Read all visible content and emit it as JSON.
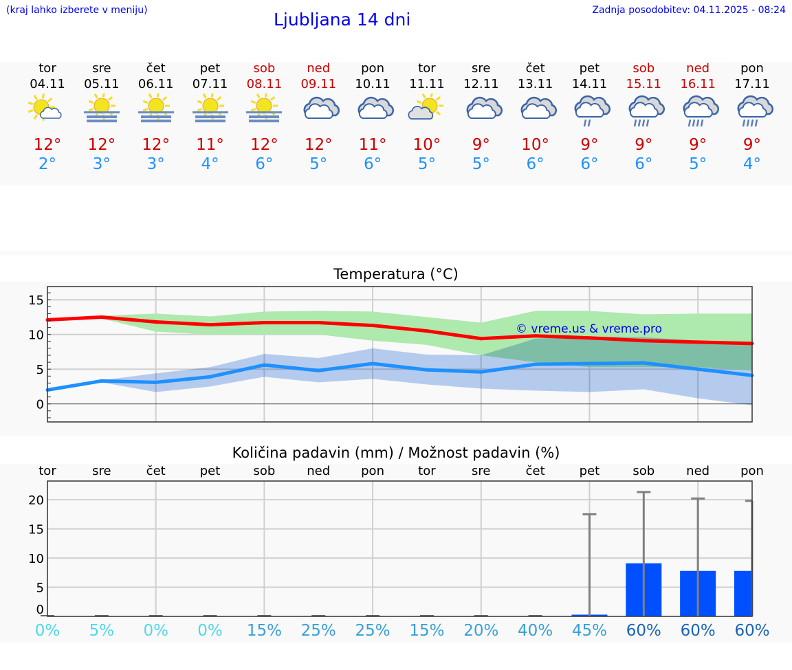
{
  "header": {
    "hint": "(kraj lahko izberete v meniju)",
    "title": "Ljubljana 14 dni",
    "updated": "Zadnja posodobitev: 04.11.2025 - 08:24"
  },
  "colors": {
    "max": "#ff0000",
    "min": "#1e90ff",
    "max_band": "#aee9ae",
    "min_band": "#aec8f2",
    "bar": "#0050ff",
    "whisker": "#808080",
    "weekend": "#cc0000"
  },
  "days": [
    {
      "weekday": "tor",
      "date": "04.11",
      "weekend": false,
      "icon": "partly-sunny-icon",
      "tmax": "12°",
      "tmin": "2°",
      "precip_chance": "0%"
    },
    {
      "weekday": "sre",
      "date": "05.11",
      "weekend": false,
      "icon": "sun-fog-icon",
      "tmax": "12°",
      "tmin": "3°",
      "precip_chance": "5%"
    },
    {
      "weekday": "čet",
      "date": "06.11",
      "weekend": false,
      "icon": "sun-fog-icon",
      "tmax": "12°",
      "tmin": "3°",
      "precip_chance": "0%"
    },
    {
      "weekday": "pet",
      "date": "07.11",
      "weekend": false,
      "icon": "sun-fog-icon",
      "tmax": "11°",
      "tmin": "4°",
      "precip_chance": "0%"
    },
    {
      "weekday": "sob",
      "date": "08.11",
      "weekend": true,
      "icon": "sun-fog-icon",
      "tmax": "12°",
      "tmin": "6°",
      "precip_chance": "15%"
    },
    {
      "weekday": "ned",
      "date": "09.11",
      "weekend": true,
      "icon": "cloudy-icon",
      "tmax": "12°",
      "tmin": "5°",
      "precip_chance": "25%"
    },
    {
      "weekday": "pon",
      "date": "10.11",
      "weekend": false,
      "icon": "cloudy-icon",
      "tmax": "11°",
      "tmin": "6°",
      "precip_chance": "25%"
    },
    {
      "weekday": "tor",
      "date": "11.11",
      "weekend": false,
      "icon": "partly-cloudy-icon",
      "tmax": "10°",
      "tmin": "5°",
      "precip_chance": "15%"
    },
    {
      "weekday": "sre",
      "date": "12.11",
      "weekend": false,
      "icon": "cloudy-icon",
      "tmax": "9°",
      "tmin": "5°",
      "precip_chance": "20%"
    },
    {
      "weekday": "čet",
      "date": "13.11",
      "weekend": false,
      "icon": "cloudy-icon",
      "tmax": "10°",
      "tmin": "6°",
      "precip_chance": "40%"
    },
    {
      "weekday": "pet",
      "date": "14.11",
      "weekend": false,
      "icon": "light-rain-icon",
      "tmax": "9°",
      "tmin": "6°",
      "precip_chance": "45%"
    },
    {
      "weekday": "sob",
      "date": "15.11",
      "weekend": true,
      "icon": "rain-icon",
      "tmax": "9°",
      "tmin": "6°",
      "precip_chance": "60%"
    },
    {
      "weekday": "ned",
      "date": "16.11",
      "weekend": true,
      "icon": "rain-icon",
      "tmax": "9°",
      "tmin": "5°",
      "precip_chance": "60%"
    },
    {
      "weekday": "pon",
      "date": "17.11",
      "weekend": false,
      "icon": "rain-icon",
      "tmax": "9°",
      "tmin": "4°",
      "precip_chance": "60%"
    }
  ],
  "chart_data": [
    {
      "type": "line",
      "title": "Temperatura (°C)",
      "x": [
        "04.11",
        "05.11",
        "06.11",
        "07.11",
        "08.11",
        "09.11",
        "10.11",
        "11.11",
        "12.11",
        "13.11",
        "14.11",
        "15.11",
        "16.11",
        "17.11"
      ],
      "ylim": [
        -2.6,
        16.9
      ],
      "yticks": [
        "0",
        "5",
        "10",
        "15"
      ],
      "grid": true,
      "watermark": "© vreme.us & vreme.pro",
      "series": [
        {
          "values": [
            12.1,
            12.5,
            11.8,
            11.4,
            11.7,
            11.7,
            11.3,
            10.5,
            9.4,
            9.8,
            9.5,
            9.1,
            8.9,
            8.7
          ],
          "band_upper": [
            12.1,
            12.7,
            13.0,
            12.6,
            13.3,
            13.4,
            13.3,
            12.5,
            11.7,
            13.4,
            13.4,
            12.9,
            13.0,
            13.0
          ],
          "band_lower": [
            12.1,
            12.3,
            10.4,
            10.0,
            10.0,
            10.0,
            9.1,
            8.5,
            7.0,
            6.0,
            5.3,
            5.3,
            5.3,
            4.8
          ]
        },
        {
          "values": [
            2.0,
            3.3,
            3.1,
            3.9,
            5.6,
            4.8,
            5.8,
            4.9,
            4.6,
            5.7,
            5.8,
            5.9,
            5.0,
            4.1
          ],
          "band_upper": [
            2.0,
            3.4,
            4.4,
            5.3,
            7.2,
            6.6,
            8.0,
            7.1,
            7.0,
            9.4,
            9.7,
            9.6,
            9.1,
            8.7
          ],
          "band_lower": [
            2.0,
            3.1,
            1.7,
            2.5,
            3.9,
            3.1,
            3.6,
            2.8,
            2.2,
            1.9,
            1.7,
            2.1,
            0.8,
            -0.2
          ]
        }
      ]
    },
    {
      "type": "bar",
      "title": "Količina padavin (mm) / Možnost padavin (%)",
      "categories": [
        "tor",
        "sre",
        "čet",
        "pet",
        "sob",
        "ned",
        "pon",
        "tor",
        "sre",
        "čet",
        "pet",
        "sob",
        "ned",
        "pon"
      ],
      "ylim": [
        0,
        23.2
      ],
      "yticks": [
        "0",
        "5",
        "10",
        "15",
        "20"
      ],
      "grid": true,
      "values": [
        0,
        0,
        0,
        0,
        0,
        0,
        0,
        0,
        0,
        0,
        0.3,
        9.1,
        7.8,
        7.8
      ],
      "whisker_max": [
        0,
        0,
        0,
        0,
        0,
        0,
        0,
        0,
        0,
        0,
        17.5,
        21.3,
        20.2,
        19.8
      ],
      "precip_chance": [
        0,
        5,
        0,
        0,
        15,
        25,
        25,
        15,
        20,
        40,
        45,
        60,
        60,
        60
      ]
    }
  ]
}
